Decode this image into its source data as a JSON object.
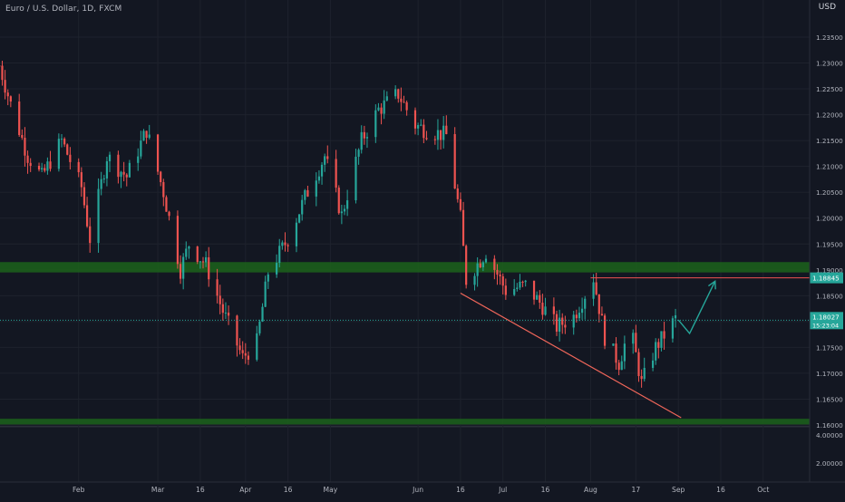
{
  "header": {
    "title": "Euro / U.S. Dollar, 1D, FXCM",
    "currency": "USD"
  },
  "colors": {
    "background": "#131722",
    "grid": "#1e222d",
    "up": "#26a69a",
    "down": "#ef5350",
    "zone": "#1f6b1f",
    "trendline": "#f0665a",
    "projection": "#26a69a",
    "axis_text": "#b2b5be"
  },
  "price_labels": {
    "level": "1.18845",
    "last": "1.18027",
    "countdown": "15:23:04"
  },
  "chart_data": {
    "type": "candlestick",
    "title": "Euro / U.S. Dollar, 1D, FXCM",
    "y_ticks": [
      "1.23500",
      "1.23000",
      "1.22500",
      "1.22000",
      "1.21500",
      "1.21000",
      "1.20500",
      "1.20000",
      "1.19500",
      "1.19000",
      "1.18500",
      "1.18000",
      "1.17500",
      "1.17000",
      "1.16500",
      "1.16000"
    ],
    "x_ticks": [
      "Feb",
      "Mar",
      "16",
      "Apr",
      "16",
      "May",
      "Jun",
      "16",
      "Jul",
      "16",
      "Aug",
      "17",
      "Sep",
      "16",
      "Oct"
    ],
    "lower_pane_ticks": [
      "4.00000",
      "2.00000"
    ],
    "ylim": [
      1.158,
      1.2392
    ],
    "close_path": [
      {
        "d": "2021-01-04",
        "p": 1.2295
      },
      {
        "d": "2021-01-08",
        "p": 1.222
      },
      {
        "d": "2021-01-14",
        "p": 1.212
      },
      {
        "d": "2021-01-19",
        "p": 1.208
      },
      {
        "d": "2021-01-26",
        "p": 1.215
      },
      {
        "d": "2021-02-02",
        "p": 1.206
      },
      {
        "d": "2021-02-05",
        "p": 1.196
      },
      {
        "d": "2021-02-11",
        "p": 1.212
      },
      {
        "d": "2021-02-18",
        "p": 1.208
      },
      {
        "d": "2021-02-25",
        "p": 1.217
      },
      {
        "d": "2021-03-03",
        "p": 1.205
      },
      {
        "d": "2021-03-09",
        "p": 1.19
      },
      {
        "d": "2021-03-12",
        "p": 1.195
      },
      {
        "d": "2021-03-18",
        "p": 1.191
      },
      {
        "d": "2021-03-24",
        "p": 1.182
      },
      {
        "d": "2021-03-31",
        "p": 1.173
      },
      {
        "d": "2021-04-05",
        "p": 1.176
      },
      {
        "d": "2021-04-09",
        "p": 1.1895
      },
      {
        "d": "2021-04-16",
        "p": 1.196
      },
      {
        "d": "2021-04-22",
        "p": 1.204
      },
      {
        "d": "2021-04-29",
        "p": 1.212
      },
      {
        "d": "2021-05-05",
        "p": 1.2005
      },
      {
        "d": "2021-05-12",
        "p": 1.215
      },
      {
        "d": "2021-05-18",
        "p": 1.221
      },
      {
        "d": "2021-05-25",
        "p": 1.224
      },
      {
        "d": "2021-05-31",
        "p": 1.218
      },
      {
        "d": "2021-06-04",
        "p": 1.217
      },
      {
        "d": "2021-06-11",
        "p": 1.216
      },
      {
        "d": "2021-06-16",
        "p": 1.2
      },
      {
        "d": "2021-06-18",
        "p": 1.188
      },
      {
        "d": "2021-06-25",
        "p": 1.1935
      },
      {
        "d": "2021-07-02",
        "p": 1.186
      },
      {
        "d": "2021-07-09",
        "p": 1.187
      },
      {
        "d": "2021-07-15",
        "p": 1.183
      },
      {
        "d": "2021-07-20",
        "p": 1.179
      },
      {
        "d": "2021-07-26",
        "p": 1.181
      },
      {
        "d": "2021-08-02",
        "p": 1.1885
      },
      {
        "d": "2021-08-06",
        "p": 1.177
      },
      {
        "d": "2021-08-11",
        "p": 1.172
      },
      {
        "d": "2021-08-15",
        "p": 1.179
      },
      {
        "d": "2021-08-19",
        "p": 1.168
      },
      {
        "d": "2021-08-24",
        "p": 1.175
      },
      {
        "d": "2021-08-31",
        "p": 1.1805
      }
    ],
    "annotations": {
      "zones": [
        [
          1.1895,
          1.1915
        ],
        [
          1.1601,
          1.1612
        ]
      ],
      "level_line": 1.18845,
      "last_price": 1.18027,
      "trendline": [
        {
          "d": "2021-06-16",
          "p": 1.1855
        },
        {
          "d": "2021-09-02",
          "p": 1.1614
        }
      ],
      "projection": [
        {
          "d": "2021-09-01",
          "p": 1.1803
        },
        {
          "d": "2021-09-05",
          "p": 1.1777
        },
        {
          "d": "2021-09-14",
          "p": 1.1878
        }
      ]
    }
  }
}
